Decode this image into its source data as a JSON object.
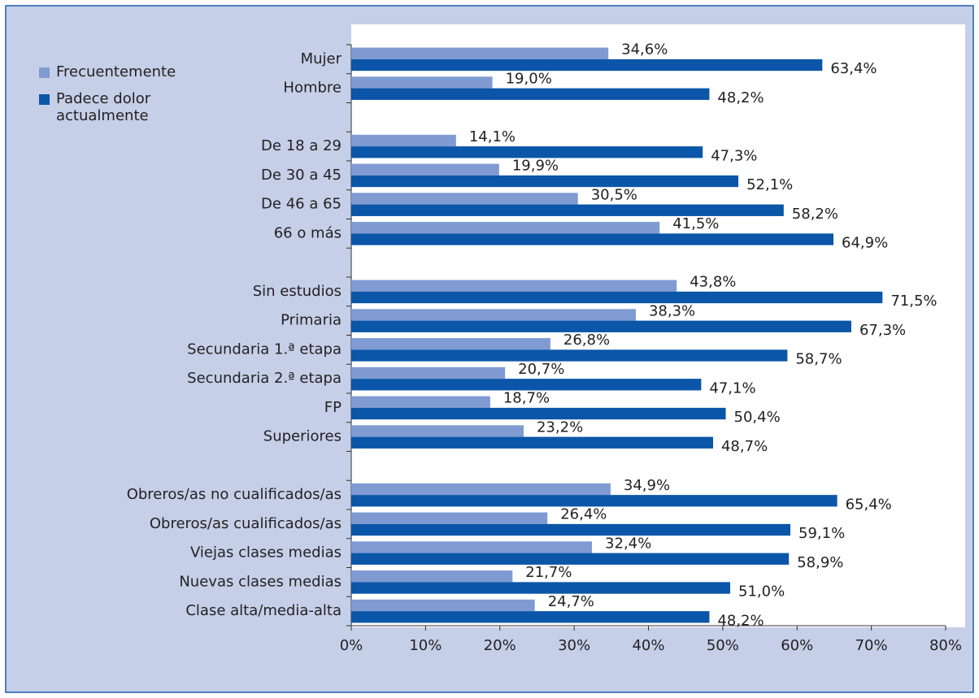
{
  "chart_data": {
    "type": "hbar",
    "categories": [
      "Mujer",
      "Hombre",
      null,
      "De 18 a 29",
      "De 30 a 45",
      "De 46 a 65",
      "66 o más",
      null,
      "Sin estudios",
      "Primaria",
      "Secundaria 1.ª etapa",
      "Secundaria 2.ª etapa",
      "FP",
      "Superiores",
      null,
      "Obreros/as no cualificados/as",
      "Obreros/as cualificados/as",
      "Viejas clases medias",
      "Nuevas clases medias",
      "Clase alta/media-alta"
    ],
    "series": [
      {
        "name": "Frecuentemente",
        "color": "#7f9bd2",
        "values": [
          34.6,
          19.0,
          null,
          14.1,
          19.9,
          30.5,
          41.5,
          null,
          43.8,
          38.3,
          26.8,
          20.7,
          18.7,
          23.2,
          null,
          34.9,
          26.4,
          32.4,
          21.7,
          24.7
        ],
        "value_labels": [
          "34,6%",
          "19,0%",
          null,
          "14,1%",
          "19,9%",
          "30,5%",
          "41,5%",
          null,
          "43,8%",
          "38,3%",
          "26,8%",
          "20,7%",
          "18,7%",
          "23,2%",
          null,
          "34,9%",
          "26,4%",
          "32,4%",
          "21,7%",
          "24,7%"
        ]
      },
      {
        "name": "Padece dolor actualmente",
        "color": "#0b56a8",
        "values": [
          63.4,
          48.2,
          null,
          47.3,
          52.1,
          58.2,
          64.9,
          null,
          71.5,
          67.3,
          58.7,
          47.1,
          50.4,
          48.7,
          null,
          65.4,
          59.1,
          58.9,
          51.0,
          48.2
        ],
        "value_labels": [
          "63,4%",
          "48,2%",
          null,
          "47,3%",
          "52,1%",
          "58,2%",
          "64,9%",
          null,
          "71,5%",
          "67,3%",
          "58,7%",
          "47,1%",
          "50,4%",
          "48,7%",
          null,
          "65,4%",
          "59,1%",
          "58,9%",
          "51,0%",
          "48,2%"
        ]
      }
    ],
    "xlim": [
      0,
      80
    ],
    "xticks": [
      {
        "value": 0,
        "label": "0%"
      },
      {
        "value": 10,
        "label": "10%"
      },
      {
        "value": 20,
        "label": "20%"
      },
      {
        "value": 30,
        "label": "30%"
      },
      {
        "value": 40,
        "label": "40%"
      },
      {
        "value": 50,
        "label": "50%"
      },
      {
        "value": 60,
        "label": "60%"
      },
      {
        "value": 70,
        "label": "70%"
      },
      {
        "value": 80,
        "label": "80%"
      }
    ],
    "legend": "upper-left"
  }
}
